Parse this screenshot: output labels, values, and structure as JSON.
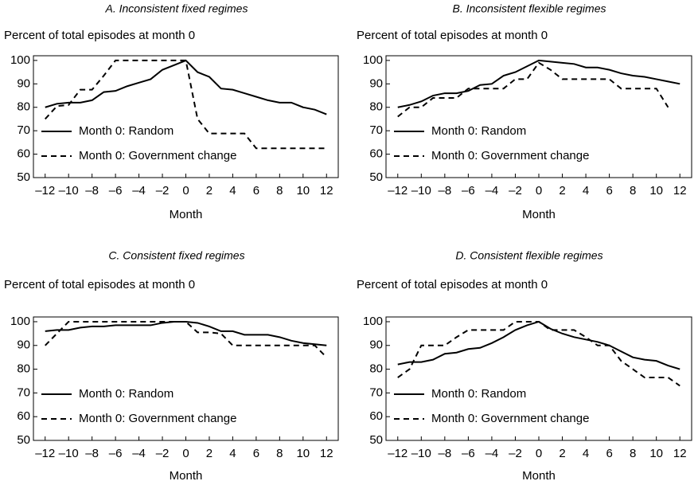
{
  "chart_data": [
    {
      "type": "line",
      "title": "A. Inconsistent fixed regimes",
      "y_label": "Percent of total episodes at month 0",
      "x_label": "Month",
      "x": [
        -12,
        -11,
        -10,
        -9,
        -8,
        -7,
        -6,
        -5,
        -4,
        -3,
        -2,
        -1,
        0,
        1,
        2,
        3,
        4,
        5,
        6,
        7,
        8,
        9,
        10,
        11,
        12
      ],
      "series": [
        {
          "name": "Month 0: Random",
          "color": "#000000",
          "style": "solid",
          "values": [
            80,
            81.5,
            82,
            82,
            83,
            86.5,
            87,
            89,
            90.5,
            92,
            96,
            98,
            100,
            95,
            93,
            88,
            87.5,
            86,
            84.5,
            83,
            82,
            82,
            80,
            79,
            77
          ]
        },
        {
          "name": "Month 0: Government change",
          "color": "#000000",
          "style": "dashed",
          "values": [
            75,
            80.5,
            81,
            87.5,
            87.5,
            93.5,
            100,
            100,
            100,
            100,
            100,
            100,
            100,
            75,
            68.8,
            68.8,
            68.8,
            68.8,
            62.5,
            62.5,
            62.5,
            62.5,
            62.5,
            62.5,
            62.5
          ]
        }
      ],
      "xlim": [
        -13,
        13
      ],
      "ylim": [
        50,
        102
      ],
      "xticks": [
        {
          "value": -12,
          "label": "–12"
        },
        {
          "value": -10,
          "label": "–10"
        },
        {
          "value": -8,
          "label": "–8"
        },
        {
          "value": -6,
          "label": "–6"
        },
        {
          "value": -4,
          "label": "–4"
        },
        {
          "value": -2,
          "label": "–2"
        },
        0,
        2,
        4,
        6,
        8,
        10,
        12
      ],
      "yticks": [
        50,
        60,
        70,
        80,
        90,
        100
      ],
      "legend": "lower left"
    },
    {
      "type": "line",
      "title": "B. Inconsistent flexible regimes",
      "y_label": "Percent of total episodes at month 0",
      "x_label": "Month",
      "x": [
        -12,
        -11,
        -10,
        -9,
        -8,
        -7,
        -6,
        -5,
        -4,
        -3,
        -2,
        -1,
        0,
        1,
        2,
        3,
        4,
        5,
        6,
        7,
        8,
        9,
        10,
        11,
        12
      ],
      "series": [
        {
          "name": "Month 0: Random",
          "color": "#000000",
          "style": "solid",
          "values": [
            80,
            81,
            82.5,
            85,
            86,
            86,
            87,
            89.5,
            90,
            93.5,
            95,
            97.5,
            100,
            99.5,
            99,
            98.5,
            97,
            97,
            96,
            94.5,
            93.5,
            93,
            92,
            91,
            90
          ]
        },
        {
          "name": "Month 0: Government change",
          "color": "#000000",
          "style": "dashed",
          "values": [
            76,
            80,
            80,
            84,
            84,
            84,
            88,
            88,
            88,
            88,
            92,
            92,
            99,
            96,
            92,
            92,
            92,
            92,
            92,
            88,
            88,
            88,
            88,
            80,
            null
          ]
        }
      ],
      "xlim": [
        -13,
        13
      ],
      "ylim": [
        50,
        102
      ],
      "xticks": [
        {
          "value": -12,
          "label": "–12"
        },
        {
          "value": -10,
          "label": "–10"
        },
        {
          "value": -8,
          "label": "–8"
        },
        {
          "value": -6,
          "label": "–6"
        },
        {
          "value": -4,
          "label": "–4"
        },
        {
          "value": -2,
          "label": "–2"
        },
        0,
        2,
        4,
        6,
        8,
        10,
        12
      ],
      "yticks": [
        50,
        60,
        70,
        80,
        90,
        100
      ],
      "legend": "lower left"
    },
    {
      "type": "line",
      "title": "C. Consistent fixed regimes",
      "y_label": "Percent of total episodes at month 0",
      "x_label": "Month",
      "x": [
        -12,
        -11,
        -10,
        -9,
        -8,
        -7,
        -6,
        -5,
        -4,
        -3,
        -2,
        -1,
        0,
        1,
        2,
        3,
        4,
        5,
        6,
        7,
        8,
        9,
        10,
        11,
        12
      ],
      "series": [
        {
          "name": "Month 0: Random",
          "color": "#000000",
          "style": "solid",
          "values": [
            96,
            96.5,
            96.5,
            97.5,
            98,
            98,
            98.5,
            98.5,
            98.5,
            98.5,
            99.5,
            100,
            100,
            99.5,
            98,
            96,
            96,
            94.5,
            94.5,
            94.5,
            93.5,
            92,
            91,
            90.5,
            90
          ]
        },
        {
          "name": "Month 0: Government change",
          "color": "#000000",
          "style": "dashed",
          "values": [
            90,
            95,
            100,
            100,
            100,
            100,
            100,
            100,
            100,
            100,
            100,
            100,
            100,
            95.5,
            95.5,
            95,
            90,
            90,
            90,
            90,
            90,
            90,
            90,
            90,
            85
          ]
        }
      ],
      "xlim": [
        -13,
        13
      ],
      "ylim": [
        50,
        102
      ],
      "xticks": [
        {
          "value": -12,
          "label": "–12"
        },
        {
          "value": -10,
          "label": "–10"
        },
        {
          "value": -8,
          "label": "–8"
        },
        {
          "value": -6,
          "label": "–6"
        },
        {
          "value": -4,
          "label": "–4"
        },
        {
          "value": -2,
          "label": "–2"
        },
        0,
        2,
        4,
        6,
        8,
        10,
        12
      ],
      "yticks": [
        50,
        60,
        70,
        80,
        90,
        100
      ],
      "legend": "lower left"
    },
    {
      "type": "line",
      "title": "D. Consistent flexible regimes",
      "y_label": "Percent of total episodes at month 0",
      "x_label": "Month",
      "x": [
        -12,
        -11,
        -10,
        -9,
        -8,
        -7,
        -6,
        -5,
        -4,
        -3,
        -2,
        -1,
        0,
        1,
        2,
        3,
        4,
        5,
        6,
        7,
        8,
        9,
        10,
        11,
        12
      ],
      "series": [
        {
          "name": "Month 0: Random",
          "color": "#000000",
          "style": "solid",
          "values": [
            82,
            83,
            83,
            84,
            86.5,
            87,
            88.5,
            89,
            91,
            93.5,
            96.5,
            98.5,
            100,
            97,
            95,
            93.5,
            92.5,
            91.5,
            90,
            87.5,
            85,
            84,
            83.5,
            81.5,
            80
          ]
        },
        {
          "name": "Month 0: Government change",
          "color": "#000000",
          "style": "dashed",
          "values": [
            76.5,
            80,
            90,
            90,
            90,
            93.5,
            96.5,
            96.5,
            96.5,
            96.5,
            100,
            100,
            100,
            96.5,
            96.5,
            96.5,
            93.5,
            90,
            90,
            83.5,
            80,
            76.5,
            76.5,
            76.5,
            73
          ]
        }
      ],
      "xlim": [
        -13,
        13
      ],
      "ylim": [
        50,
        102
      ],
      "xticks": [
        {
          "value": -12,
          "label": "–12"
        },
        {
          "value": -10,
          "label": "–10"
        },
        {
          "value": -8,
          "label": "–8"
        },
        {
          "value": -6,
          "label": "–6"
        },
        {
          "value": -4,
          "label": "–4"
        },
        {
          "value": -2,
          "label": "–2"
        },
        0,
        2,
        4,
        6,
        8,
        10,
        12
      ],
      "yticks": [
        50,
        60,
        70,
        80,
        90,
        100
      ],
      "legend": "lower left"
    }
  ]
}
